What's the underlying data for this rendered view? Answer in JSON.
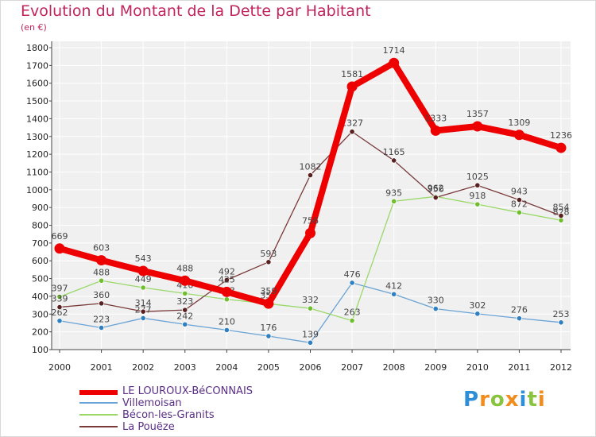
{
  "header": {
    "title": "Evolution du Montant de la Dette par Habitant",
    "subtitle": "(en €)"
  },
  "logo": {
    "text": "Proxiti",
    "letters": [
      {
        "ch": "P",
        "color": "#2f8fd6"
      },
      {
        "ch": "r",
        "color": "#f28c1c"
      },
      {
        "ch": "o",
        "color": "#8ac43f"
      },
      {
        "ch": "x",
        "color": "#f28c1c"
      },
      {
        "ch": "i",
        "color": "#2f8fd6"
      },
      {
        "ch": "t",
        "color": "#8ac43f"
      },
      {
        "ch": "i",
        "color": "#f28c1c"
      }
    ]
  },
  "chart_data": {
    "type": "line",
    "title": "Evolution du Montant de la Dette par Habitant",
    "ylabel": "(en €)",
    "x": [
      "2000",
      "2001",
      "2002",
      "2003",
      "2004",
      "2005",
      "2006",
      "2007",
      "2008",
      "2009",
      "2010",
      "2011",
      "2012"
    ],
    "ylim": [
      100,
      1800
    ],
    "yticks": [
      100,
      200,
      300,
      400,
      500,
      600,
      700,
      800,
      900,
      1000,
      1100,
      1200,
      1300,
      1400,
      1500,
      1600,
      1700,
      1800
    ],
    "grid": true,
    "legend_position": "bottom-left",
    "series": [
      {
        "name": "Villemoisan",
        "color": "#6aa3d5",
        "marker_color": "#2f7fc1",
        "values": [
          262,
          223,
          277,
          242,
          210,
          176,
          139,
          476,
          412,
          330,
          302,
          276,
          253
        ],
        "labels": [
          "262",
          "223",
          "277",
          "242",
          "210",
          "176",
          "139",
          "476",
          "412",
          "330",
          "302",
          "276",
          "253"
        ]
      },
      {
        "name": "Bécon-les-Granits",
        "color": "#9ad86a",
        "marker_color": "#6fbe2e",
        "values": [
          397,
          488,
          449,
          416,
          383,
          358,
          332,
          263,
          935,
          962,
          918,
          872,
          828
        ],
        "labels": [
          "397",
          "488",
          "449",
          "416",
          "383",
          "358",
          "332",
          "263",
          "935",
          "962",
          "918",
          "872",
          "828"
        ]
      },
      {
        "name": "La Pouëze",
        "color": "#7a3a3a",
        "marker_color": "#5a1f1f",
        "values": [
          339,
          360,
          314,
          323,
          492,
          593,
          1082,
          1327,
          1165,
          956,
          1025,
          943,
          854
        ],
        "labels": [
          "339",
          "360",
          "314",
          "323",
          "492",
          "593",
          "1082",
          "1327",
          "1165",
          "956",
          "1025",
          "943",
          "854"
        ]
      },
      {
        "name": "LE LOUROUX-BéCONNAIS",
        "color": "#ee0000",
        "marker_color": "#ee0000",
        "values": [
          669,
          603,
          543,
          488,
          425,
          359,
          756,
          1581,
          1714,
          1333,
          1357,
          1309,
          1236
        ],
        "labels": [
          "669",
          "603",
          "543",
          "488",
          "425",
          "359",
          "756",
          "1581",
          "1714",
          "1333",
          "1357",
          "1309",
          "1236"
        ]
      }
    ]
  }
}
